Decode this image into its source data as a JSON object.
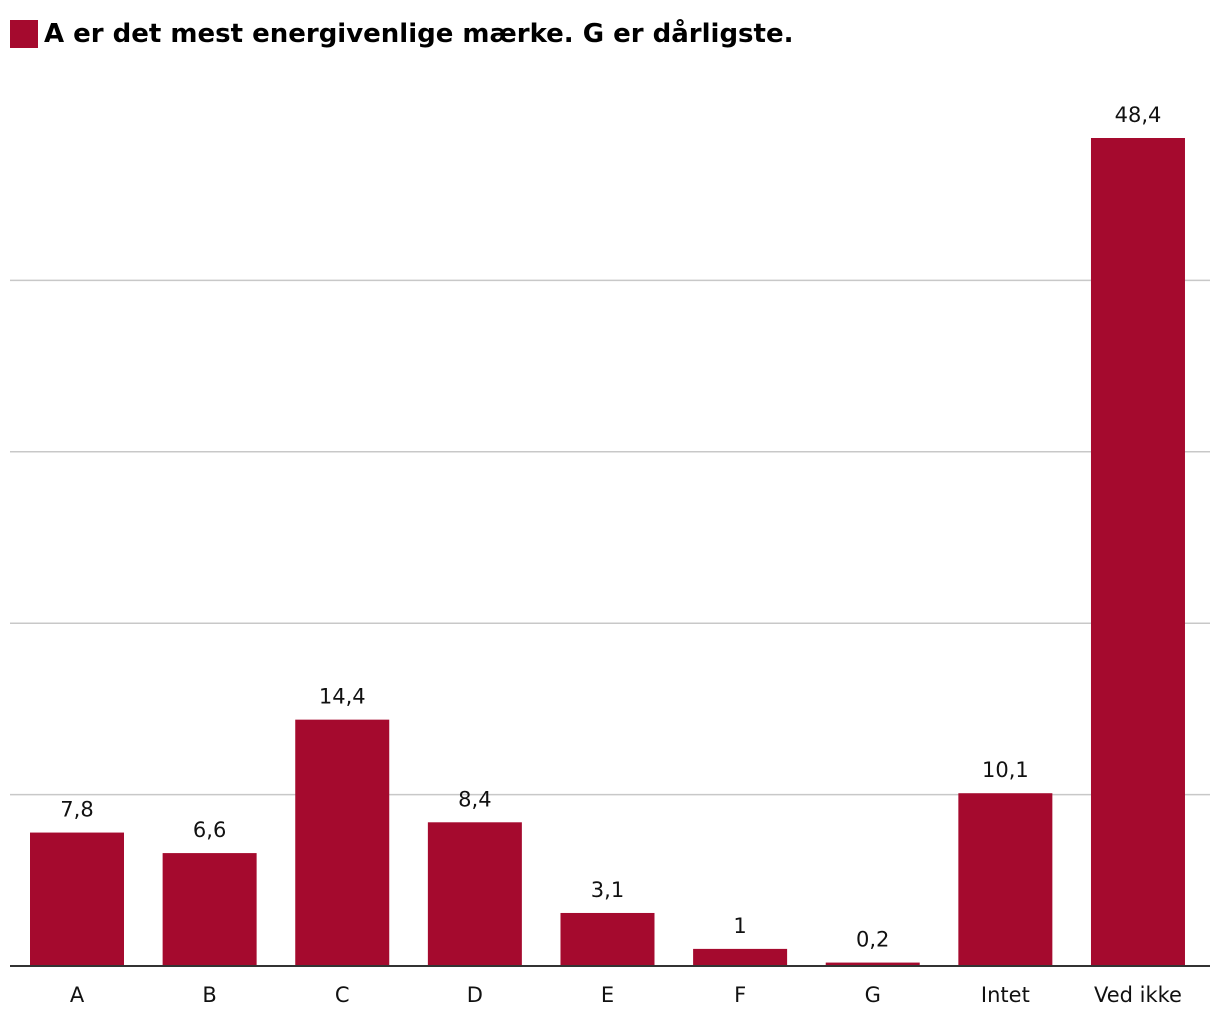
{
  "chart_data": {
    "type": "bar",
    "title": "",
    "xlabel": "",
    "ylabel": "",
    "ylim": [
      0,
      48.4
    ],
    "grid": true,
    "legend": "top-left",
    "categories": [
      "A",
      "B",
      "C",
      "D",
      "E",
      "F",
      "G",
      "Intet",
      "Ved ikke"
    ],
    "value_labels": [
      "7,8",
      "6,6",
      "14,4",
      "8,4",
      "3,1",
      "1",
      "0,2",
      "10,1",
      "48,4"
    ],
    "series": [
      {
        "name": "A er det mest energivenlige mærke. G er dårligste.",
        "color": "#a50a2e",
        "values": [
          7.8,
          6.6,
          14.4,
          8.4,
          3.1,
          1,
          0.2,
          10.1,
          48.4
        ]
      }
    ]
  }
}
